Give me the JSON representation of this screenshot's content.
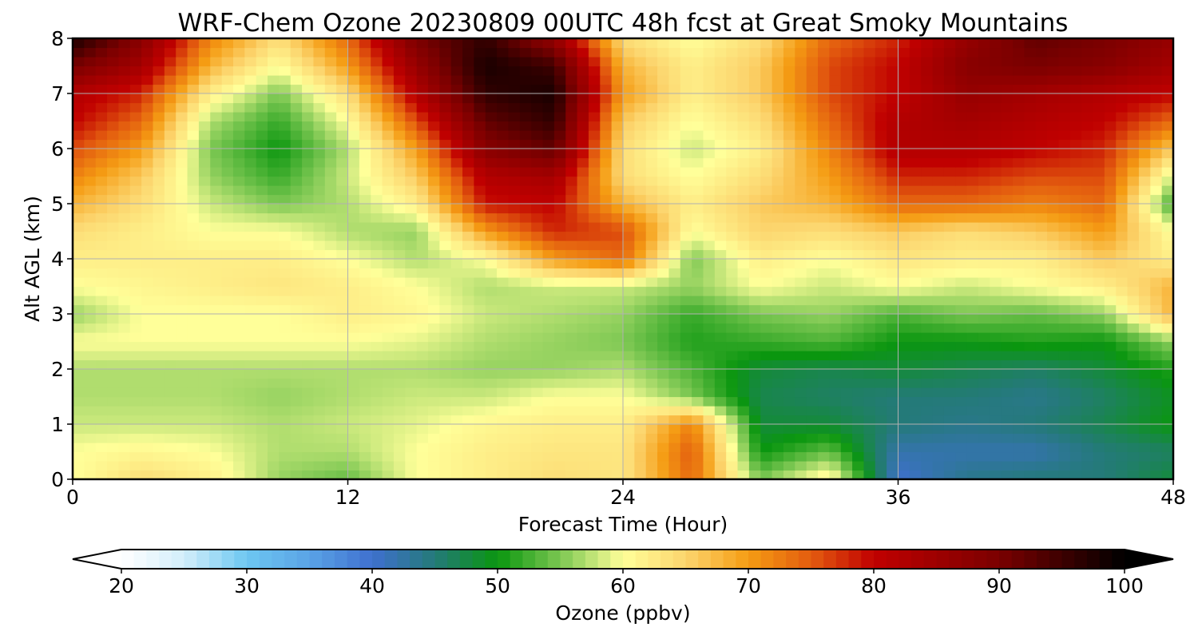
{
  "chart_data": {
    "type": "heatmap",
    "title": "WRF-Chem Ozone  20230809 00UTC 48h fcst at Great Smoky Mountains",
    "xlabel": "Forecast Time (Hour)",
    "ylabel": "Alt AGL (km)",
    "xlim": [
      0,
      48
    ],
    "ylim": [
      0,
      8
    ],
    "x_ticks": [
      "0",
      "12",
      "24",
      "36",
      "48"
    ],
    "y_ticks": [
      "0",
      "1",
      "2",
      "3",
      "4",
      "5",
      "6",
      "7",
      "8"
    ],
    "grid": true,
    "x": [
      0,
      3,
      6,
      9,
      12,
      15,
      18,
      21,
      24,
      27,
      30,
      33,
      36,
      39,
      42,
      45,
      48
    ],
    "y": [
      0,
      0.5,
      1,
      1.5,
      2,
      2.5,
      3,
      3.5,
      4,
      4.5,
      5,
      5.5,
      6,
      6.5,
      7,
      7.5,
      8
    ],
    "values": [
      [
        60,
        64,
        62,
        56,
        54,
        60,
        62,
        64,
        63,
        74,
        55,
        62,
        40,
        44,
        45,
        45,
        48
      ],
      [
        60,
        61,
        60,
        57,
        57,
        60,
        62,
        63,
        63,
        75,
        50,
        54,
        42,
        42,
        42,
        45,
        46
      ],
      [
        58,
        58,
        58,
        57,
        58,
        59,
        61,
        62,
        62,
        72,
        48,
        48,
        45,
        44,
        45,
        47,
        50
      ],
      [
        57,
        57,
        57,
        56,
        57,
        58,
        58,
        60,
        60,
        55,
        47,
        46,
        45,
        45,
        44,
        46,
        49
      ],
      [
        57,
        57,
        57,
        57,
        57,
        57,
        56,
        56,
        57,
        53,
        48,
        47,
        48,
        47,
        46,
        48,
        51
      ],
      [
        60,
        60,
        60,
        60,
        60,
        59,
        57,
        56,
        55,
        51,
        52,
        53,
        50,
        50,
        51,
        50,
        56
      ],
      [
        56,
        60,
        60,
        60,
        62,
        61,
        58,
        57,
        56,
        52,
        55,
        56,
        53,
        55,
        54,
        56,
        68
      ],
      [
        60,
        61,
        62,
        63,
        62,
        60,
        57,
        58,
        58,
        56,
        60,
        58,
        60,
        58,
        60,
        62,
        68
      ],
      [
        62,
        62,
        62,
        62,
        60,
        57,
        60,
        70,
        74,
        55,
        62,
        60,
        63,
        62,
        62,
        66,
        62
      ],
      [
        64,
        62,
        60,
        60,
        57,
        56,
        70,
        78,
        76,
        60,
        65,
        64,
        66,
        64,
        66,
        70,
        60
      ],
      [
        68,
        64,
        58,
        55,
        57,
        62,
        79,
        80,
        68,
        62,
        66,
        68,
        74,
        74,
        72,
        74,
        52
      ],
      [
        72,
        66,
        56,
        52,
        58,
        66,
        82,
        84,
        64,
        60,
        64,
        70,
        78,
        78,
        76,
        76,
        58
      ],
      [
        76,
        70,
        55,
        50,
        57,
        70,
        88,
        92,
        64,
        58,
        62,
        72,
        82,
        82,
        80,
        78,
        66
      ],
      [
        80,
        74,
        57,
        52,
        60,
        76,
        92,
        96,
        66,
        60,
        64,
        74,
        82,
        84,
        82,
        80,
        74
      ],
      [
        82,
        78,
        62,
        55,
        64,
        82,
        96,
        98,
        70,
        62,
        66,
        76,
        80,
        86,
        84,
        82,
        80
      ],
      [
        90,
        84,
        68,
        60,
        70,
        86,
        98,
        95,
        68,
        62,
        66,
        76,
        80,
        88,
        90,
        88,
        84
      ],
      [
        98,
        88,
        72,
        64,
        74,
        90,
        96,
        86,
        64,
        60,
        64,
        74,
        78,
        86,
        92,
        90,
        86
      ]
    ],
    "colorbar": {
      "label": "Ozone  (ppbv)",
      "ticks": [
        "20",
        "30",
        "40",
        "50",
        "60",
        "70",
        "80",
        "90",
        "100"
      ],
      "range": [
        20,
        100
      ],
      "extend": "both",
      "colors": {
        "20": "#ffffff",
        "25": "#d2eefa",
        "30": "#6dc7f1",
        "35": "#5aa3e6",
        "40": "#3f70cf",
        "45": "#247a78",
        "50": "#0a960f",
        "55": "#7cc752",
        "60": "#ffff99",
        "65": "#fcd56e",
        "70": "#f59c13",
        "75": "#e35c0f",
        "80": "#c00000",
        "90": "#7a0000",
        "100": "#000000"
      }
    }
  }
}
